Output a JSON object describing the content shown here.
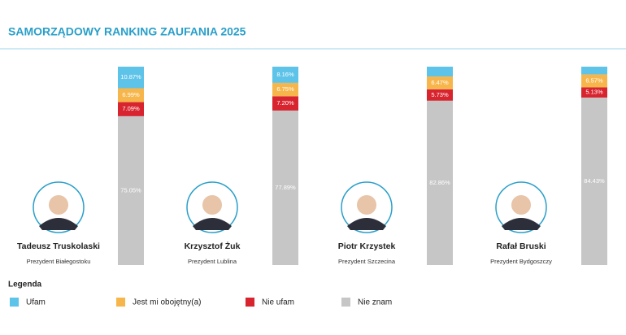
{
  "chart_data": {
    "type": "stacked-bar",
    "title": "SAMORZĄDOWY RANKING ZAUFANIA 2025",
    "categories": [
      "Tadeusz Truskolaski",
      "Krzysztof Żuk",
      "Piotr Krzystek",
      "Rafał Bruski"
    ],
    "subtitles": [
      "Prezydent Białegostoku",
      "Prezydent Lublina",
      "Prezydent Szczecina",
      "Prezydent Bydgoszczy"
    ],
    "ylim": [
      0,
      100
    ],
    "legend_title": "Legenda",
    "series": [
      {
        "name": "Ufam",
        "color": "#5ec3e8",
        "values": [
          10.87,
          8.16,
          4.94,
          3.87
        ],
        "value_labels": [
          "10.87%",
          "8.16%",
          null,
          null
        ]
      },
      {
        "name": "Jest mi obojętny(a)",
        "color": "#f7b64b",
        "values": [
          6.99,
          6.75,
          6.47,
          6.57
        ],
        "value_labels": [
          "6.99%",
          "6.75%",
          "6.47%",
          "6.57%"
        ]
      },
      {
        "name": "Nie ufam",
        "color": "#d7242e",
        "values": [
          7.09,
          7.2,
          5.73,
          5.13
        ],
        "value_labels": [
          "7.09%",
          "7.20%",
          "5.73%",
          "5.13%"
        ]
      },
      {
        "name": "Nie znam",
        "color": "#c6c6c6",
        "values": [
          75.05,
          77.89,
          82.86,
          84.43
        ],
        "value_labels": [
          "75.05%",
          "77.89%",
          "82.86%",
          "84.43%"
        ]
      }
    ]
  }
}
